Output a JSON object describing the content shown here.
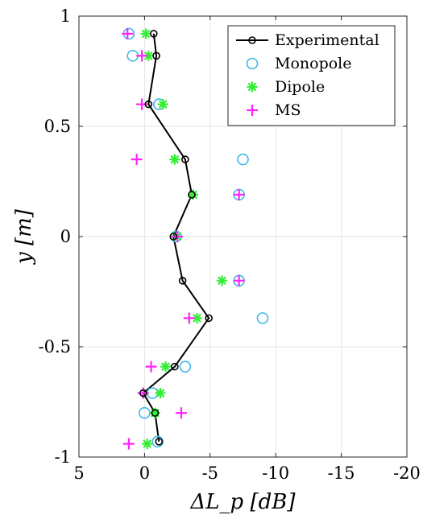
{
  "chart_data": {
    "type": "scatter",
    "xlabel": "ΔL_p [dB]",
    "ylabel": "y [m]",
    "xlim": [
      5,
      -20
    ],
    "ylim": [
      -1,
      1
    ],
    "x_reversed": true,
    "xticks": [
      5,
      0,
      -5,
      -10,
      -15,
      -20
    ],
    "xtick_labels": [
      "5",
      "0",
      "-5",
      "-10",
      "-15",
      "-20"
    ],
    "yticks": [
      -1,
      -0.5,
      0,
      0.5,
      1
    ],
    "ytick_labels": [
      "-1",
      "-0.5",
      "0",
      "0.5",
      "1"
    ],
    "grid": true,
    "legend_position": "top-right",
    "series": [
      {
        "name": "Experimental",
        "marker": "circle-line",
        "color": "#000000",
        "x": [
          -0.7,
          -0.9,
          -0.3,
          -3.1,
          -3.6,
          -2.2,
          -2.9,
          -4.9,
          -2.3,
          0.1,
          -0.8,
          -1.1
        ],
        "y": [
          0.92,
          0.82,
          0.6,
          0.35,
          0.19,
          0.0,
          -0.2,
          -0.37,
          -0.59,
          -0.71,
          -0.8,
          -0.93
        ]
      },
      {
        "name": "Monopole",
        "marker": "circle",
        "color": "#3fb8e6",
        "x": [
          1.2,
          0.9,
          -1.1,
          -7.5,
          -7.2,
          -2.4,
          -7.2,
          -9.0,
          -3.1,
          -0.6,
          0.0,
          -1.0
        ],
        "y": [
          0.92,
          0.82,
          0.6,
          0.35,
          0.19,
          0.0,
          -0.2,
          -0.37,
          -0.59,
          -0.71,
          -0.8,
          -0.93
        ]
      },
      {
        "name": "Dipole",
        "marker": "asterisk",
        "color": "#33ee33",
        "x": [
          -0.1,
          -0.3,
          -1.4,
          -2.3,
          -3.7,
          -2.5,
          -5.9,
          -4.0,
          -1.6,
          -1.2,
          -0.8,
          -0.2
        ],
        "y": [
          0.92,
          0.82,
          0.6,
          0.35,
          0.19,
          0.0,
          -0.2,
          -0.37,
          -0.59,
          -0.71,
          -0.8,
          -0.94
        ]
      },
      {
        "name": "MS",
        "marker": "plus",
        "color": "#ff22ff",
        "x": [
          1.3,
          0.2,
          0.2,
          0.6,
          -7.2,
          -2.5,
          -7.2,
          -3.4,
          -0.5,
          0.1,
          -2.8,
          1.2
        ],
        "y": [
          0.92,
          0.82,
          0.6,
          0.35,
          0.19,
          0.0,
          -0.2,
          -0.37,
          -0.59,
          -0.71,
          -0.8,
          -0.94
        ]
      }
    ]
  }
}
